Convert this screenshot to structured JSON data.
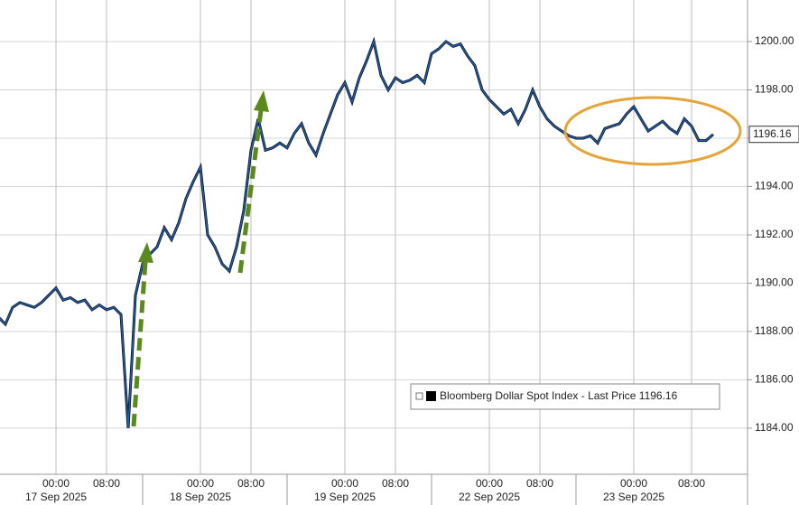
{
  "chart_data": {
    "type": "line",
    "series": [
      {
        "name": "Bloomberg Dollar Spot Index - Last Price",
        "color": "#1f63b8",
        "values": [
          1188.6,
          1188.3,
          1189.0,
          1189.2,
          1189.1,
          1189.0,
          1189.2,
          1189.5,
          1189.8,
          1189.3,
          1189.4,
          1189.2,
          1189.3,
          1188.9,
          1189.1,
          1188.9,
          1189.0,
          1188.7,
          1184.0,
          1189.5,
          1190.8,
          1191.2,
          1191.5,
          1192.3,
          1191.8,
          1192.5,
          1193.5,
          1194.2,
          1194.8,
          1192.0,
          1191.5,
          1190.8,
          1190.5,
          1191.5,
          1193.0,
          1195.5,
          1196.8,
          1195.5,
          1195.6,
          1195.8,
          1195.6,
          1196.2,
          1196.6,
          1195.8,
          1195.3,
          1196.2,
          1197.0,
          1197.8,
          1198.3,
          1197.5,
          1198.5,
          1199.2,
          1200.0,
          1198.6,
          1198.0,
          1198.5,
          1198.3,
          1198.4,
          1198.6,
          1198.3,
          1199.5,
          1199.7,
          1200.0,
          1199.8,
          1199.9,
          1199.4,
          1199.0,
          1198.0,
          1197.6,
          1197.3,
          1197.0,
          1197.2,
          1196.6,
          1197.2,
          1198.0,
          1197.3,
          1196.8,
          1196.5,
          1196.3,
          1196.1,
          1196.0,
          1196.0,
          1196.1,
          1195.8,
          1196.4,
          1196.5,
          1196.6,
          1197.0,
          1197.3,
          1196.8,
          1196.3,
          1196.5,
          1196.7,
          1196.4,
          1196.2,
          1196.8,
          1196.5,
          1195.9,
          1195.9,
          1196.16
        ]
      }
    ],
    "categories": [
      null,
      null,
      null,
      null,
      null,
      null,
      null,
      null,
      "00:00",
      null,
      null,
      null,
      null,
      null,
      null,
      "08:00",
      null,
      null,
      null,
      null,
      null,
      null,
      null,
      null,
      null,
      null,
      null,
      null,
      "00:00",
      null,
      null,
      null,
      null,
      null,
      null,
      "08:00",
      null,
      null,
      null,
      null,
      null,
      null,
      null,
      null,
      null,
      null,
      null,
      null,
      "00:00",
      null,
      null,
      null,
      null,
      null,
      null,
      "08:00",
      null,
      null,
      null,
      null,
      null,
      null,
      null,
      null,
      null,
      null,
      null,
      null,
      "00:00",
      null,
      null,
      null,
      null,
      null,
      null,
      "08:00",
      null,
      null,
      null,
      null,
      null,
      null,
      null,
      null,
      null,
      null,
      null,
      null,
      "00:00",
      null,
      null,
      null,
      null,
      null,
      null,
      null,
      "08:00",
      null,
      null,
      null
    ],
    "dates": [
      null,
      null,
      null,
      null,
      null,
      null,
      null,
      null,
      "17 Sep 2025",
      null,
      null,
      null,
      null,
      null,
      null,
      null,
      null,
      null,
      null,
      null,
      null,
      null,
      null,
      null,
      null,
      null,
      null,
      null,
      "18 Sep 2025",
      null,
      null,
      null,
      null,
      null,
      null,
      null,
      null,
      null,
      null,
      null,
      null,
      null,
      null,
      null,
      null,
      null,
      null,
      null,
      "19 Sep 2025",
      null,
      null,
      null,
      null,
      null,
      null,
      null,
      null,
      null,
      null,
      null,
      null,
      null,
      null,
      null,
      null,
      null,
      null,
      null,
      "22 Sep 2025",
      null,
      null,
      null,
      null,
      null,
      null,
      null,
      null,
      null,
      null,
      null,
      null,
      null,
      null,
      null,
      null,
      null,
      null,
      null,
      "23 Sep 2025",
      null,
      null,
      null,
      null,
      null,
      null,
      null,
      null,
      null,
      null,
      null
    ],
    "ylim": [
      1182.09,
      1201.72
    ],
    "yticks": [
      {
        "value": 1184,
        "label": "1184.00"
      },
      {
        "value": 1186,
        "label": "1186.00"
      },
      {
        "value": 1188,
        "label": "1188.00"
      },
      {
        "value": 1190,
        "label": "1190.00"
      },
      {
        "value": 1192,
        "label": "1192.00"
      },
      {
        "value": 1194,
        "label": "1194.00"
      },
      {
        "value": 1196,
        "label": "1196.00"
      },
      {
        "value": 1198,
        "label": "1198.00"
      },
      {
        "value": 1200,
        "label": "1200.00"
      }
    ],
    "grid": true,
    "legend": "lower right"
  }
}
